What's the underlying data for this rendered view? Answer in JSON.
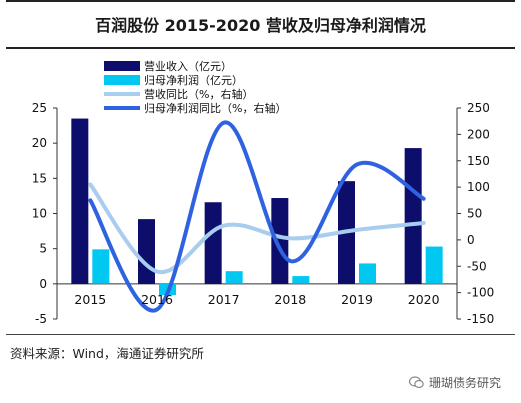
{
  "header": {
    "title": "百润股份 2015-2020 营收及归母净利润情况"
  },
  "footer": {
    "source": "资料来源：Wind，海通证券研究所",
    "watermark": "珊瑚债务研究"
  },
  "icons": {
    "watermark_icon": "wechat-icon"
  },
  "colors": {
    "revenue": "#0d0d6b",
    "profit": "#00c8f0",
    "revenue_yoy": "#a9cdee",
    "profit_yoy": "#2f62e0"
  },
  "chart_data": {
    "type": "bar",
    "categories": [
      "2015",
      "2016",
      "2017",
      "2018",
      "2019",
      "2020"
    ],
    "series": [
      {
        "name": "营业收入（亿元）",
        "type": "bar",
        "axis": "left",
        "values": [
          23.5,
          9.2,
          11.6,
          12.2,
          14.6,
          19.3
        ]
      },
      {
        "name": "归母净利润（亿元）",
        "type": "bar",
        "axis": "left",
        "values": [
          4.9,
          -1.6,
          1.8,
          1.1,
          2.9,
          5.3
        ]
      },
      {
        "name": "营收同比（%，右轴）",
        "type": "line",
        "axis": "right",
        "values": [
          105,
          -60,
          27,
          3,
          19,
          32
        ]
      },
      {
        "name": "归母净利润同比（%，右轴）",
        "type": "line",
        "axis": "right",
        "values": [
          75,
          -132,
          222,
          -40,
          143,
          78
        ]
      }
    ],
    "y_left": {
      "min": -5,
      "max": 25,
      "ticks": [
        "-5",
        "0",
        "5",
        "10",
        "15",
        "20",
        "25"
      ]
    },
    "y_right": {
      "min": -150,
      "max": 250,
      "ticks": [
        "-150",
        "-100",
        "-50",
        "0",
        "50",
        "100",
        "150",
        "200",
        "250"
      ]
    },
    "legend_position": "top-left"
  }
}
